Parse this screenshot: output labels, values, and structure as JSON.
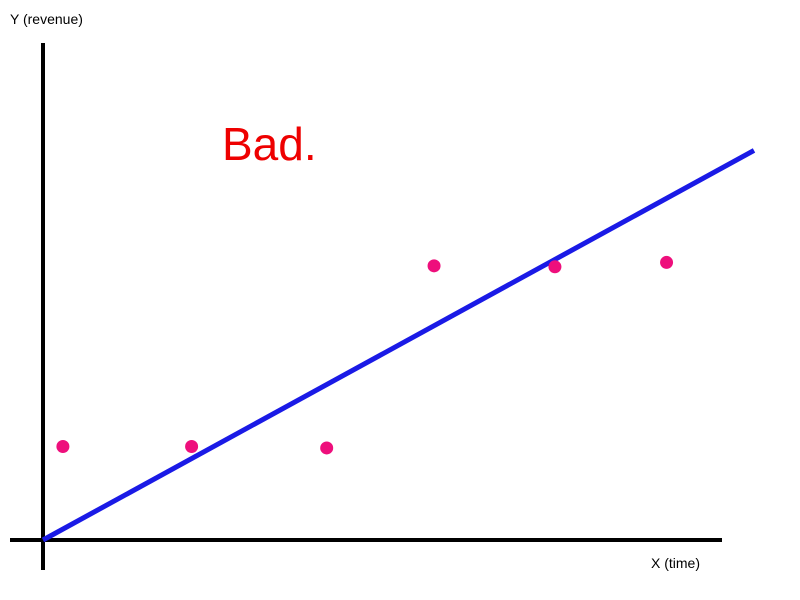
{
  "chart_data": {
    "type": "scatter",
    "title": "",
    "xlabel": "X (time)",
    "ylabel": "Y (revenue)",
    "annotation": "Bad.",
    "xlim": [
      0,
      100
    ],
    "ylim": [
      0,
      100
    ],
    "grid": false,
    "legend": "none",
    "points": [
      {
        "x": 2.8,
        "y": 19.2
      },
      {
        "x": 20.9,
        "y": 19.2
      },
      {
        "x": 39.9,
        "y": 18.9
      },
      {
        "x": 55.0,
        "y": 56.3
      },
      {
        "x": 72.0,
        "y": 56.1
      },
      {
        "x": 87.7,
        "y": 57.0
      }
    ],
    "trend_line": {
      "x": [
        0,
        100
      ],
      "y": [
        0,
        80
      ]
    },
    "colors": {
      "axes": "#000000",
      "points": "#ee0f7c",
      "trend_line": "#1a1ae6",
      "annotation": "#ee0000"
    }
  }
}
